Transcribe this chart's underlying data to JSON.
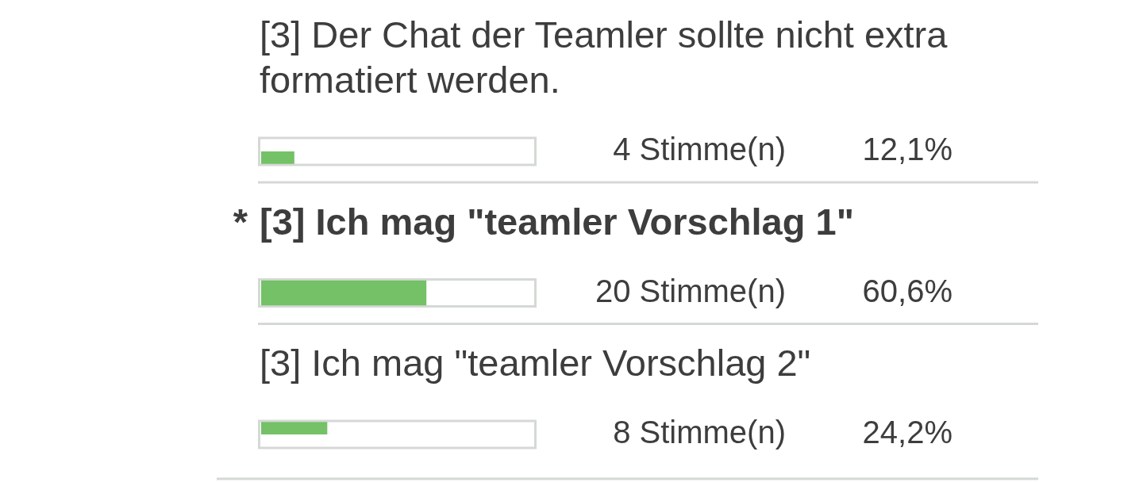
{
  "chart_data": {
    "type": "bar",
    "orientation": "horizontal",
    "categories": [
      "[3] Der Chat der Teamler sollte nicht extra formatiert werden.",
      "[3] Ich mag \"teamler Vorschlag 1\"",
      "[3] Ich mag \"teamler Vorschlag 2\""
    ],
    "values": [
      12.1,
      60.6,
      24.2
    ],
    "color": "#74c167",
    "xlim": [
      0,
      100
    ],
    "value_labels": [
      "12,1%",
      "60,6%",
      "24,2%"
    ],
    "annotations": [
      "4 Stimme(n)",
      "20 Stimme(n)",
      "8 Stimme(n)",
      "*"
    ],
    "tick_labels": "y"
  }
}
